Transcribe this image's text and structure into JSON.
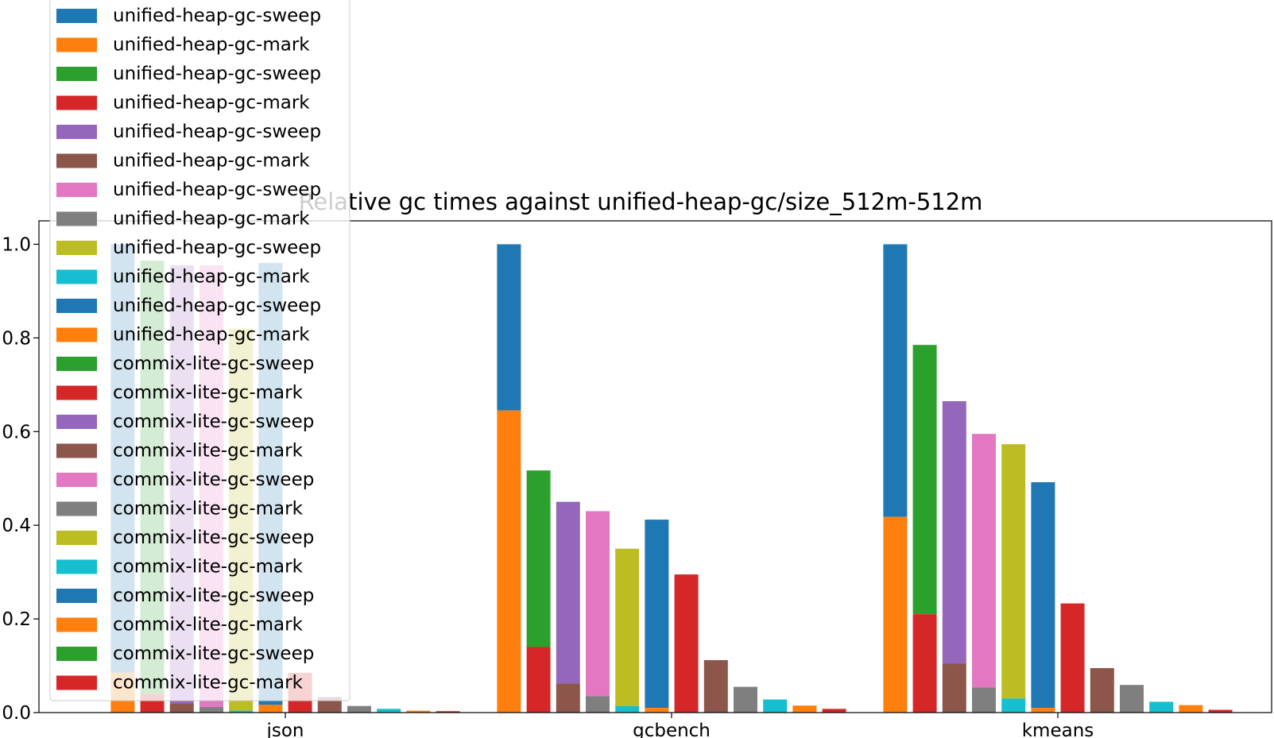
{
  "chart_data": {
    "type": "bar",
    "title": "Relative gc times against unified-heap-gc/size_512m-512m",
    "categories": [
      "json",
      "gcbench",
      "kmeans"
    ],
    "ylim": [
      0,
      1.05
    ],
    "yticks": [
      "0.0",
      "0.2",
      "0.4",
      "0.6",
      "0.8",
      "1.0"
    ],
    "grid": false,
    "legend_position": "upper-left",
    "stacked_pairs": true,
    "bar_groups": [
      {
        "category": "json",
        "bars": [
          {
            "total": 1.0,
            "bottom": 0.085
          },
          {
            "total": 0.965,
            "bottom": 0.04
          },
          {
            "total": 0.955,
            "bottom": 0.02
          },
          {
            "total": 0.955,
            "bottom": 0.012
          },
          {
            "total": 0.82,
            "bottom": 0.004
          },
          {
            "total": 0.96,
            "bottom": 0.017
          },
          {
            "total": 0.085,
            "bottom": 0.085
          },
          {
            "total": 0.033,
            "bottom": 0.033
          },
          {
            "total": 0.014,
            "bottom": 0.014
          },
          {
            "total": 0.008,
            "bottom": 0.008
          },
          {
            "total": 0.004,
            "bottom": 0.004
          },
          {
            "total": 0.003,
            "bottom": 0.003
          }
        ]
      },
      {
        "category": "gcbench",
        "bars": [
          {
            "total": 1.0,
            "bottom": 0.645
          },
          {
            "total": 0.517,
            "bottom": 0.14
          },
          {
            "total": 0.45,
            "bottom": 0.062
          },
          {
            "total": 0.43,
            "bottom": 0.035
          },
          {
            "total": 0.35,
            "bottom": 0.014
          },
          {
            "total": 0.412,
            "bottom": 0.01
          },
          {
            "total": 0.295,
            "bottom": 0.295
          },
          {
            "total": 0.112,
            "bottom": 0.112
          },
          {
            "total": 0.055,
            "bottom": 0.055
          },
          {
            "total": 0.028,
            "bottom": 0.028
          },
          {
            "total": 0.015,
            "bottom": 0.015
          },
          {
            "total": 0.008,
            "bottom": 0.008
          }
        ]
      },
      {
        "category": "kmeans",
        "bars": [
          {
            "total": 1.0,
            "bottom": 0.418
          },
          {
            "total": 0.785,
            "bottom": 0.21
          },
          {
            "total": 0.665,
            "bottom": 0.105
          },
          {
            "total": 0.595,
            "bottom": 0.054
          },
          {
            "total": 0.573,
            "bottom": 0.03
          },
          {
            "total": 0.492,
            "bottom": 0.01
          },
          {
            "total": 0.233,
            "bottom": 0.233
          },
          {
            "total": 0.095,
            "bottom": 0.095
          },
          {
            "total": 0.059,
            "bottom": 0.059
          },
          {
            "total": 0.023,
            "bottom": 0.023
          },
          {
            "total": 0.016,
            "bottom": 0.016
          },
          {
            "total": 0.006,
            "bottom": 0.006
          }
        ]
      }
    ],
    "legend": [
      {
        "label": "unified-heap-gc-sweep",
        "color": "#1f77b4"
      },
      {
        "label": "unified-heap-gc-mark",
        "color": "#ff7f0e"
      },
      {
        "label": "unified-heap-gc-sweep",
        "color": "#2ca02c"
      },
      {
        "label": "unified-heap-gc-mark",
        "color": "#d62728"
      },
      {
        "label": "unified-heap-gc-sweep",
        "color": "#9467bd"
      },
      {
        "label": "unified-heap-gc-mark",
        "color": "#8c564b"
      },
      {
        "label": "unified-heap-gc-sweep",
        "color": "#e377c2"
      },
      {
        "label": "unified-heap-gc-mark",
        "color": "#7f7f7f"
      },
      {
        "label": "unified-heap-gc-sweep",
        "color": "#bcbd22"
      },
      {
        "label": "unified-heap-gc-mark",
        "color": "#17becf"
      },
      {
        "label": "unified-heap-gc-sweep",
        "color": "#1f77b4"
      },
      {
        "label": "unified-heap-gc-mark",
        "color": "#ff7f0e"
      },
      {
        "label": "commix-lite-gc-sweep",
        "color": "#2ca02c"
      },
      {
        "label": "commix-lite-gc-mark",
        "color": "#d62728"
      },
      {
        "label": "commix-lite-gc-sweep",
        "color": "#9467bd"
      },
      {
        "label": "commix-lite-gc-mark",
        "color": "#8c564b"
      },
      {
        "label": "commix-lite-gc-sweep",
        "color": "#e377c2"
      },
      {
        "label": "commix-lite-gc-mark",
        "color": "#7f7f7f"
      },
      {
        "label": "commix-lite-gc-sweep",
        "color": "#bcbd22"
      },
      {
        "label": "commix-lite-gc-mark",
        "color": "#17becf"
      },
      {
        "label": "commix-lite-gc-sweep",
        "color": "#1f77b4"
      },
      {
        "label": "commix-lite-gc-mark",
        "color": "#ff7f0e"
      },
      {
        "label": "commix-lite-gc-sweep",
        "color": "#2ca02c"
      },
      {
        "label": "commix-lite-gc-mark",
        "color": "#d62728"
      }
    ]
  }
}
